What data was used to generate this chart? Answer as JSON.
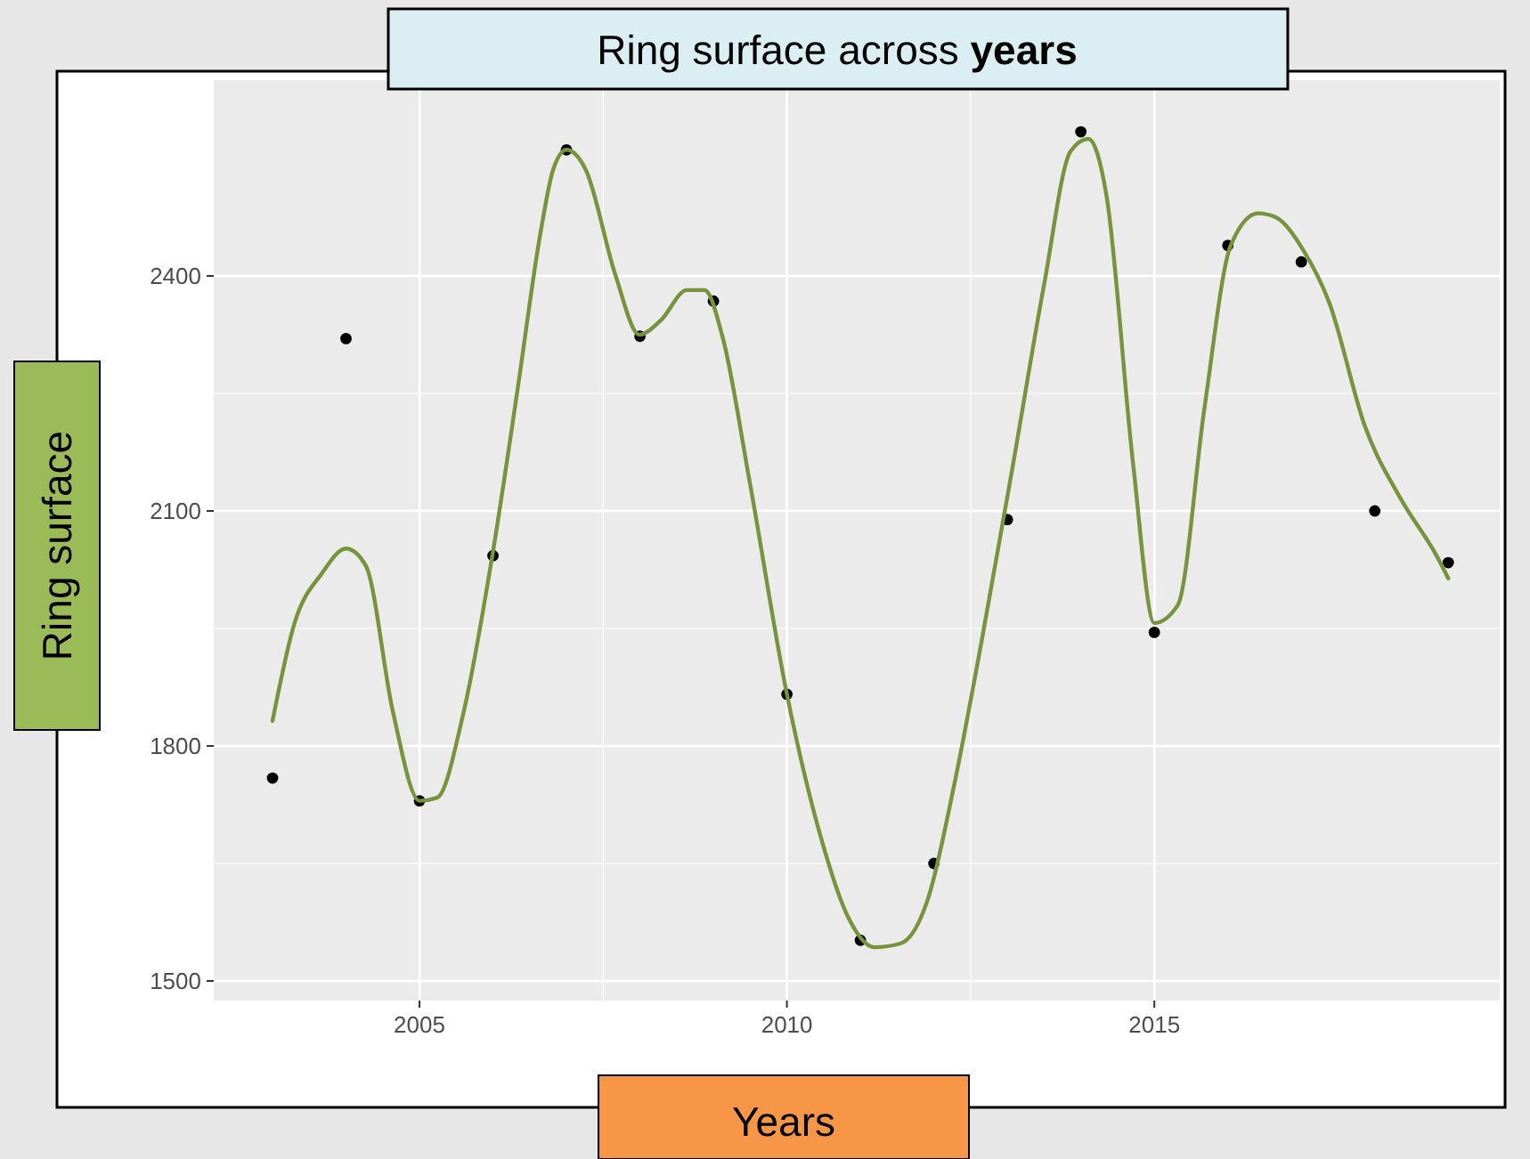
{
  "chart_data": {
    "type": "scatter",
    "title": "Ring surface across years",
    "xlabel": "Years",
    "ylabel": "Ring surface",
    "xlim": [
      2002.2,
      2019.7
    ],
    "xticks": [
      2005,
      2010,
      2015
    ],
    "ylim": [
      1475,
      2650
    ],
    "yticks": [
      1500,
      1800,
      2100,
      2400
    ],
    "grid": true,
    "series": [
      {
        "color": "#000000",
        "marker": "circle",
        "x": [
          2003,
          2004,
          2005,
          2006,
          2007,
          2008,
          2009,
          2010,
          2011,
          2012,
          2013,
          2014,
          2015,
          2016,
          2017,
          2018,
          2019
        ],
        "values": [
          1759,
          2320,
          1730,
          2043,
          2561,
          2323,
          2368,
          1866,
          1552,
          1650,
          2089,
          2584,
          1945,
          2439,
          2418,
          2100,
          2034
        ]
      },
      {
        "type": "line",
        "color": "#77933c",
        "line_style": "solid",
        "x": [
          2003.0,
          2003.3,
          2003.67,
          2004.0,
          2004.27,
          2004.64,
          2005.0,
          2005.24,
          2005.6,
          2006.0,
          2006.33,
          2006.65,
          2006.82,
          2007.0,
          2007.26,
          2007.67,
          2007.99,
          2008.28,
          2008.64,
          2008.88,
          2009.13,
          2009.49,
          2010.0,
          2010.46,
          2010.83,
          2011.19,
          2011.55,
          2011.92,
          2012.28,
          2012.65,
          2013.08,
          2013.5,
          2013.86,
          2014.1,
          2014.35,
          2014.71,
          2015.0,
          2015.32,
          2015.68,
          2016.04,
          2016.41,
          2016.65,
          2017.02,
          2017.38,
          2017.87,
          2018.35,
          2018.84,
          2019.0
        ],
        "values": [
          1832,
          1957,
          2020,
          2052,
          2030,
          1843,
          1730,
          1734,
          1843,
          2048,
          2252,
          2457,
          2536,
          2561,
          2536,
          2400,
          2325,
          2343,
          2382,
          2382,
          2320,
          2139,
          1866,
          1684,
          1582,
          1543,
          1548,
          1605,
          1752,
          1934,
          2161,
          2389,
          2559,
          2575,
          2502,
          2161,
          1957,
          1980,
          2230,
          2439,
          2480,
          2475,
          2434,
          2366,
          2207,
          2116,
          2043,
          2014
        ]
      }
    ]
  }
}
